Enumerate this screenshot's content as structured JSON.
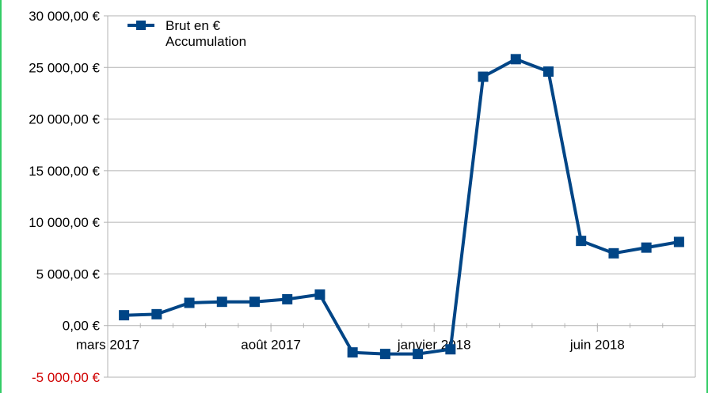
{
  "chart_data": {
    "type": "line",
    "title": "",
    "xlabel": "",
    "ylabel": "",
    "legend": {
      "placement": "top-left",
      "entries": [
        "Brut en €",
        "Accumulation"
      ]
    },
    "ylim": [
      -5000,
      30000
    ],
    "yticks": [
      {
        "value": 30000,
        "label": "30 000,00 €"
      },
      {
        "value": 25000,
        "label": "25 000,00 €"
      },
      {
        "value": 20000,
        "label": "20 000,00 €"
      },
      {
        "value": 15000,
        "label": "15 000,00 €"
      },
      {
        "value": 10000,
        "label": "10 000,00 €"
      },
      {
        "value": 5000,
        "label": "5 000,00 €"
      },
      {
        "value": 0,
        "label": "0,00 €"
      },
      {
        "value": -5000,
        "label": "-5 000,00 €"
      }
    ],
    "x": [
      "2017-03",
      "2017-04",
      "2017-05",
      "2017-06",
      "2017-07",
      "2017-08",
      "2017-09",
      "2017-10",
      "2017-11",
      "2017-12",
      "2018-01",
      "2018-02",
      "2018-03",
      "2018-04",
      "2018-05",
      "2018-06",
      "2018-07",
      "2018-08"
    ],
    "xticks": [
      {
        "x": "2017-03",
        "label": "mars 2017"
      },
      {
        "x": "2017-08",
        "label": "août 2017"
      },
      {
        "x": "2018-01",
        "label": "janvier 2018"
      },
      {
        "x": "2018-06",
        "label": "juin 2018"
      }
    ],
    "grid": true,
    "colors": {
      "series": "#004586",
      "grid": "#b3b3b3",
      "negative_label": "#d00000"
    },
    "series": [
      {
        "name": "Brut en € Accumulation",
        "values": [
          1000,
          1100,
          2200,
          2300,
          2300,
          2550,
          3000,
          -2600,
          -2750,
          -2750,
          -2300,
          24100,
          25800,
          24600,
          8200,
          7000,
          7550,
          8100
        ]
      }
    ]
  }
}
